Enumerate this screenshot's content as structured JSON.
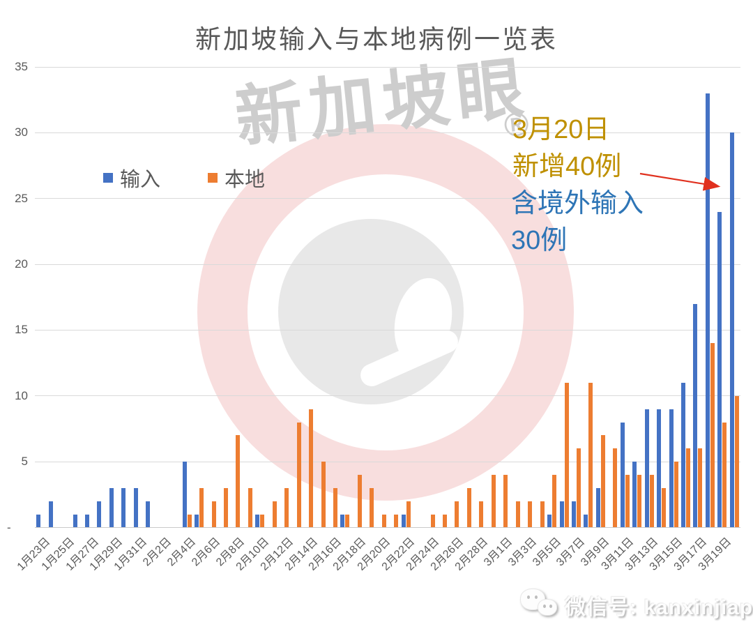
{
  "title": "新加坡输入与本地病例一览表",
  "legend": [
    {
      "label": "输入",
      "color": "#4472C4"
    },
    {
      "label": "本地",
      "color": "#ED7D31"
    }
  ],
  "annotation": {
    "line1": "3月20日",
    "line2": "新增40例",
    "line3": "含境外输入",
    "line4": "30例",
    "gold_color": "#BF9000",
    "blue_color": "#2E75B6",
    "arrow_color": "#E0301E"
  },
  "watermark": {
    "text": "新加坡眼",
    "reg": "®"
  },
  "footer": {
    "wechat_label": "微信号: kanxinjiapo"
  },
  "y_axis": {
    "ticks": [
      "35",
      "30",
      "25",
      "20",
      "15",
      "10",
      "5",
      "-"
    ]
  },
  "chart_data": {
    "type": "bar",
    "title": "新加坡输入与本地病例一览表",
    "grid": "horizontal",
    "legend_position": "top-left",
    "ylim": [
      0,
      35
    ],
    "y_ticks": [
      0,
      5,
      10,
      15,
      20,
      25,
      30,
      35
    ],
    "categories": [
      "1月23日",
      "1月24日",
      "1月25日",
      "1月26日",
      "1月27日",
      "1月28日",
      "1月29日",
      "1月30日",
      "1月31日",
      "2月1日",
      "2月2日",
      "2月3日",
      "2月4日",
      "2月5日",
      "2月6日",
      "2月7日",
      "2月8日",
      "2月9日",
      "2月10日",
      "2月11日",
      "2月12日",
      "2月13日",
      "2月14日",
      "2月15日",
      "2月16日",
      "2月17日",
      "2月18日",
      "2月19日",
      "2月20日",
      "2月21日",
      "2月22日",
      "2月23日",
      "2月24日",
      "2月25日",
      "2月26日",
      "2月27日",
      "2月28日",
      "2月29日",
      "3月1日",
      "3月2日",
      "3月3日",
      "3月4日",
      "3月5日",
      "3月6日",
      "3月7日",
      "3月8日",
      "3月9日",
      "3月10日",
      "3月11日",
      "3月12日",
      "3月13日",
      "3月14日",
      "3月15日",
      "3月16日",
      "3月17日",
      "3月18日",
      "3月19日",
      "3月20日"
    ],
    "x_tick_labels": [
      "1月23日",
      "1月25日",
      "1月27日",
      "1月29日",
      "1月31日",
      "2月2日",
      "2月4日",
      "2月6日",
      "2月8日",
      "2月10日",
      "2月12日",
      "2月14日",
      "2月16日",
      "2月18日",
      "2月20日",
      "2月22日",
      "2月24日",
      "2月26日",
      "2月28日",
      "3月1日",
      "3月3日",
      "3月5日",
      "3月7日",
      "3月9日",
      "3月11日",
      "3月13日",
      "3月15日",
      "3月17日",
      "3月19日"
    ],
    "series": [
      {
        "name": "输入",
        "color": "#4472C4",
        "values": [
          1,
          2,
          0,
          1,
          1,
          2,
          3,
          3,
          3,
          2,
          0,
          0,
          5,
          1,
          0,
          0,
          0,
          0,
          1,
          0,
          0,
          0,
          0,
          0,
          0,
          1,
          0,
          0,
          0,
          0,
          1,
          0,
          0,
          0,
          0,
          0,
          0,
          0,
          0,
          0,
          0,
          0,
          1,
          2,
          2,
          1,
          3,
          0,
          8,
          5,
          9,
          9,
          9,
          11,
          17,
          33,
          24,
          30
        ]
      },
      {
        "name": "本地",
        "color": "#ED7D31",
        "values": [
          0,
          0,
          0,
          0,
          0,
          0,
          0,
          0,
          0,
          0,
          0,
          0,
          1,
          3,
          2,
          3,
          7,
          3,
          1,
          2,
          3,
          8,
          9,
          5,
          3,
          1,
          4,
          3,
          1,
          1,
          2,
          0,
          1,
          1,
          2,
          3,
          2,
          4,
          4,
          2,
          2,
          2,
          4,
          11,
          6,
          11,
          7,
          6,
          4,
          4,
          4,
          3,
          5,
          6,
          6,
          14,
          8,
          10
        ]
      }
    ],
    "annotation_text": "3月20日 新增40例 含境外输入 30例",
    "annotation_target_category": "3月20日"
  }
}
